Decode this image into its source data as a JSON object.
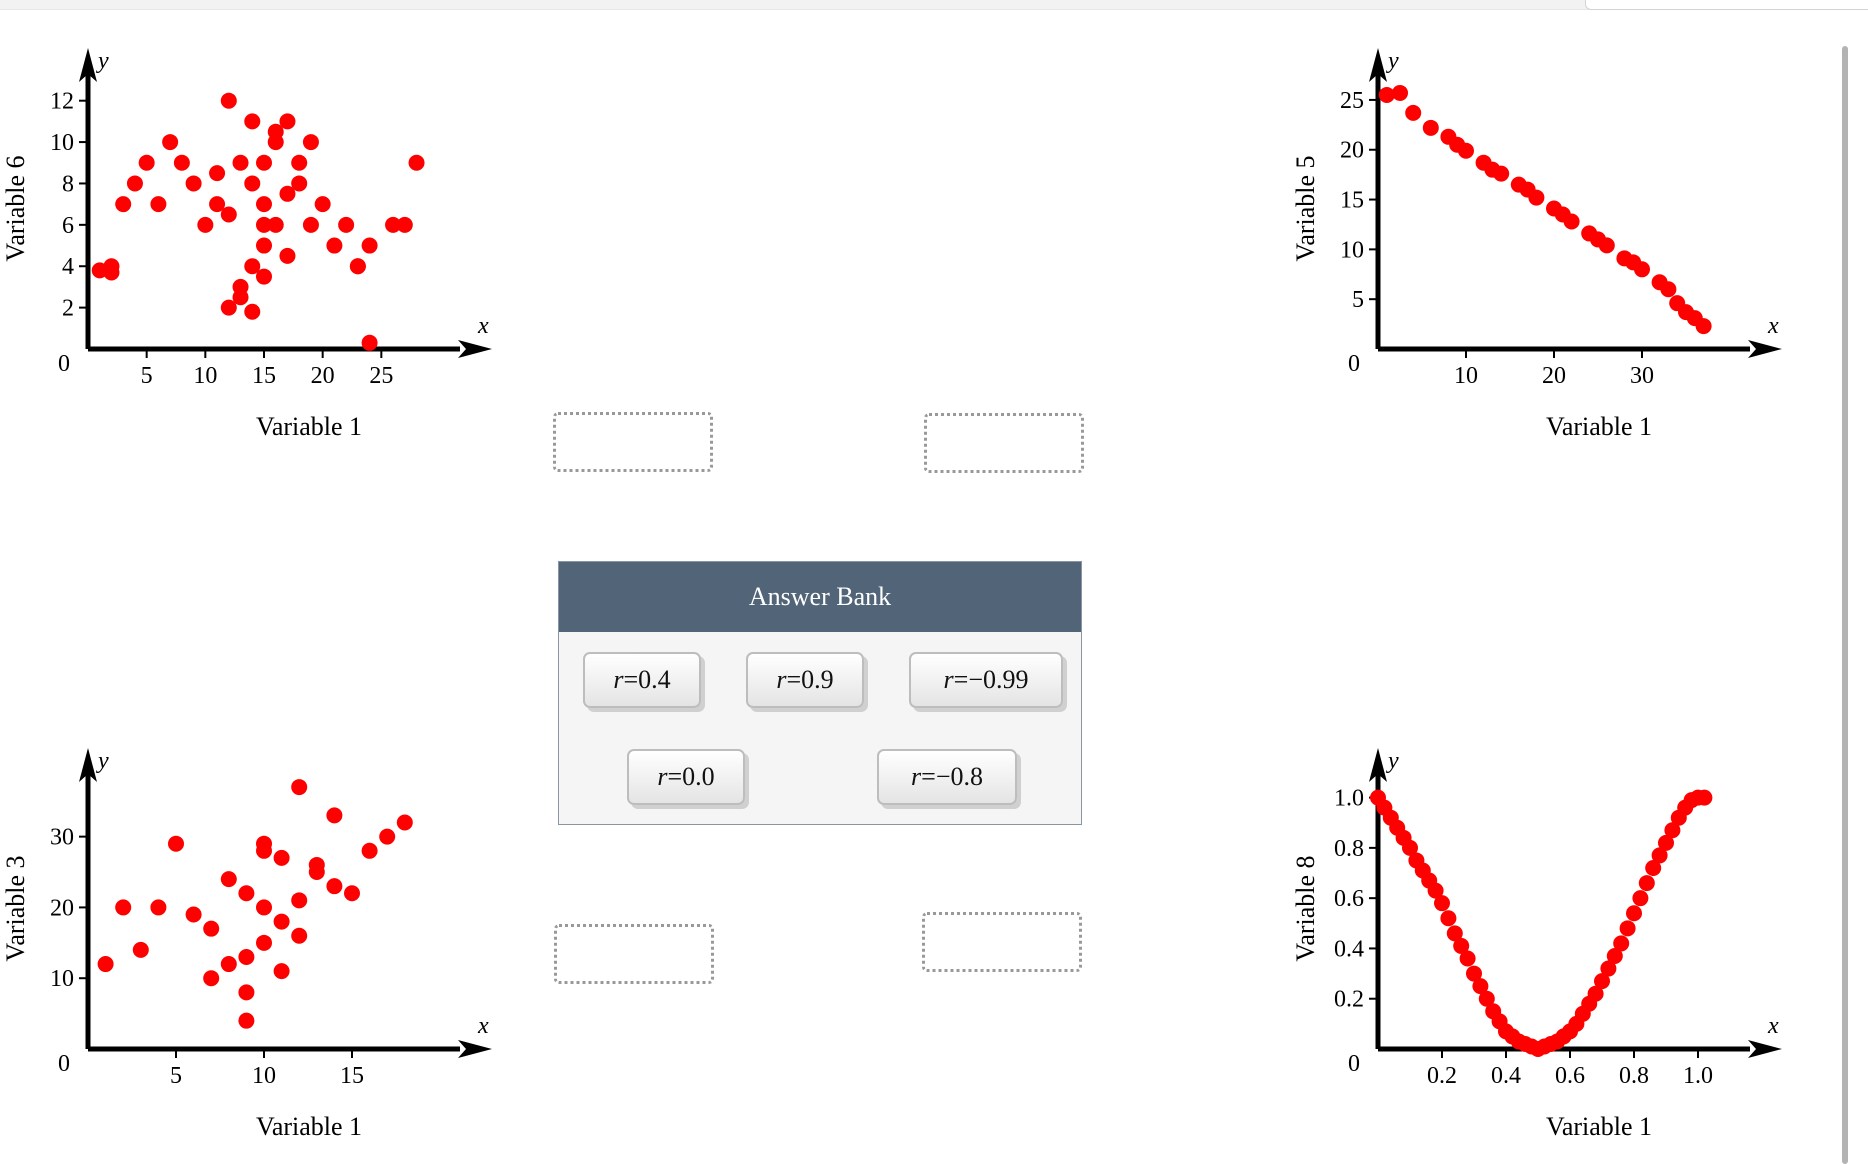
{
  "answer_bank": {
    "title": "Answer Bank",
    "items": [
      {
        "var": "r",
        "eq": " = ",
        "value": "0.4"
      },
      {
        "var": "r",
        "eq": " = ",
        "value": "0.9"
      },
      {
        "var": "r",
        "eq": " = ",
        "value": "−0.99"
      },
      {
        "var": "r",
        "eq": " = ",
        "value": "0.0"
      },
      {
        "var": "r",
        "eq": " = ",
        "value": "−0.8"
      }
    ]
  },
  "chart_data": [
    {
      "type": "scatter",
      "xlabel": "Variable 1",
      "ylabel": "Variable 6",
      "x_axis_letter": "x",
      "y_axis_letter": "y",
      "xlim": [
        0,
        30
      ],
      "ylim": [
        0,
        13
      ],
      "xticks": [
        "5",
        "10",
        "15",
        "20",
        "25"
      ],
      "yticks": [
        "2",
        "4",
        "6",
        "8",
        "10",
        "12"
      ],
      "origin_label": "0",
      "color": "#ff0000",
      "x": [
        15,
        14,
        16,
        13,
        17,
        12,
        18,
        15,
        16,
        14,
        11,
        19,
        15,
        13,
        17,
        10,
        20,
        9,
        21,
        8,
        22,
        7,
        23,
        6,
        24,
        5,
        26,
        4,
        3,
        2,
        12,
        14,
        16,
        18,
        15,
        13,
        17,
        11,
        19,
        15,
        27,
        28,
        24,
        1,
        2,
        23,
        12,
        14
      ],
      "y": [
        7,
        8,
        6,
        9,
        7.5,
        6.5,
        8,
        5,
        10,
        4,
        7,
        6,
        9,
        3,
        11,
        6,
        7,
        8,
        5,
        9,
        6,
        10,
        4,
        7,
        5,
        9,
        6,
        8,
        7,
        4,
        12,
        11,
        10.5,
        9,
        3.5,
        2.5,
        4.5,
        8.5,
        10,
        6,
        6,
        9,
        0.3,
        3.8,
        3.7,
        4,
        2,
        1.8
      ]
    },
    {
      "type": "scatter",
      "xlabel": "Variable 1",
      "ylabel": "Variable 5",
      "x_axis_letter": "x",
      "y_axis_letter": "y",
      "xlim": [
        0,
        40
      ],
      "ylim": [
        0,
        27
      ],
      "xticks": [
        "10",
        "20",
        "30"
      ],
      "yticks": [
        "5",
        "10",
        "15",
        "20",
        "25"
      ],
      "origin_label": "0",
      "color": "#ff0000",
      "x": [
        1,
        2.5,
        4,
        6,
        8,
        10,
        12,
        14,
        16,
        18,
        20,
        22,
        24,
        26,
        28,
        30,
        32,
        34,
        35,
        36,
        37,
        9,
        13,
        17,
        21,
        25,
        29,
        33
      ],
      "y": [
        25.5,
        25.7,
        23.7,
        22.2,
        21.3,
        19.9,
        18.7,
        17.6,
        16.5,
        15.2,
        14.1,
        12.8,
        11.6,
        10.4,
        9.1,
        8,
        6.7,
        4.6,
        3.7,
        3.1,
        2.3,
        20.5,
        18,
        16,
        13.5,
        11,
        8.7,
        6
      ],
      "values_note_hidden": ""
    },
    {
      "type": "scatter",
      "xlabel": "Variable 1",
      "ylabel": "Variable 3",
      "x_axis_letter": "x",
      "y_axis_letter": "y",
      "xlim": [
        0,
        20
      ],
      "ylim": [
        0,
        38
      ],
      "xticks": [
        "5",
        "10",
        "15"
      ],
      "yticks": [
        "10",
        "20",
        "30"
      ],
      "origin_label": "0",
      "color": "#ff0000",
      "x": [
        10,
        9,
        11,
        8,
        12,
        7,
        13,
        10,
        11,
        9,
        6,
        14,
        10,
        8,
        12,
        5,
        15,
        4,
        16,
        3,
        17,
        18,
        2,
        1,
        12,
        9,
        9,
        10,
        14,
        13,
        7,
        11
      ],
      "y": [
        20,
        22,
        18,
        24,
        21,
        17,
        25,
        15,
        27,
        13,
        19,
        23,
        29,
        12,
        16,
        29,
        22,
        20,
        28,
        14,
        30,
        32,
        20,
        12,
        37,
        8,
        4,
        28,
        33,
        26,
        10,
        11
      ]
    },
    {
      "type": "scatter",
      "xlabel": "Variable 1",
      "ylabel": "Variable 8",
      "x_axis_letter": "x",
      "y_axis_letter": "y",
      "xlim": [
        0,
        1.1
      ],
      "ylim": [
        0,
        1.07
      ],
      "xticks": [
        "0.2",
        "0.4",
        "0.6",
        "0.8",
        "1.0"
      ],
      "yticks": [
        "0.2",
        "0.4",
        "0.6",
        "0.8",
        "1.0"
      ],
      "origin_label": "0",
      "color": "#ff0000",
      "x": [
        0,
        0.02,
        0.04,
        0.06,
        0.08,
        0.1,
        0.12,
        0.14,
        0.16,
        0.18,
        0.2,
        0.22,
        0.24,
        0.26,
        0.28,
        0.3,
        0.32,
        0.34,
        0.36,
        0.38,
        0.4,
        0.42,
        0.44,
        0.46,
        0.48,
        0.5,
        0.52,
        0.54,
        0.56,
        0.58,
        0.6,
        0.62,
        0.64,
        0.66,
        0.68,
        0.7,
        0.72,
        0.74,
        0.76,
        0.78,
        0.8,
        0.82,
        0.84,
        0.86,
        0.88,
        0.9,
        0.92,
        0.94,
        0.96,
        0.98,
        1.0,
        1.02
      ],
      "y": [
        1.0,
        0.96,
        0.92,
        0.88,
        0.84,
        0.8,
        0.75,
        0.71,
        0.67,
        0.63,
        0.58,
        0.52,
        0.46,
        0.41,
        0.36,
        0.3,
        0.25,
        0.2,
        0.15,
        0.11,
        0.07,
        0.05,
        0.03,
        0.02,
        0.01,
        0.0,
        0.01,
        0.02,
        0.03,
        0.05,
        0.07,
        0.1,
        0.14,
        0.18,
        0.22,
        0.27,
        0.32,
        0.37,
        0.42,
        0.48,
        0.54,
        0.6,
        0.66,
        0.72,
        0.77,
        0.82,
        0.87,
        0.92,
        0.96,
        0.99,
        1.0,
        1.0
      ]
    }
  ]
}
